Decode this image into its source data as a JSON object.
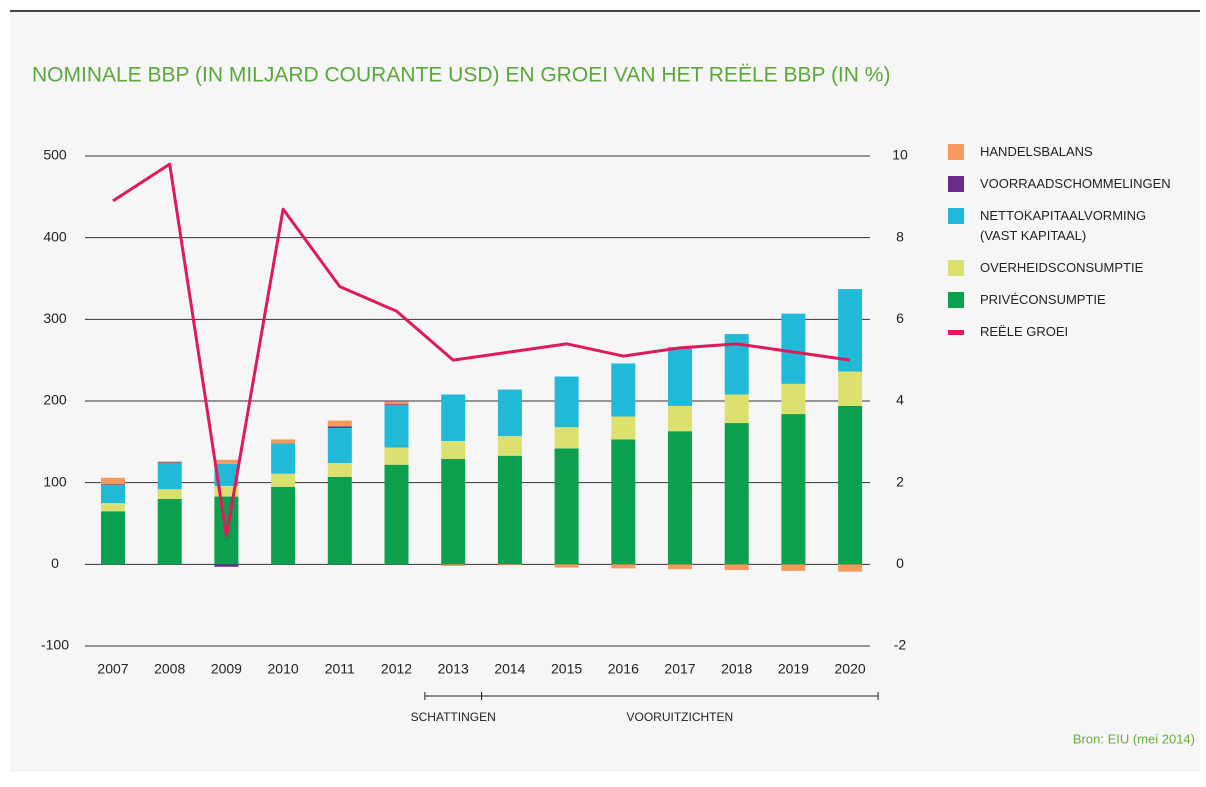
{
  "chart_data": {
    "type": "bar",
    "title": "NOMINALE BBP (IN MILJARD COURANTE USD) EN GROEI VAN HET REËLE BBP (IN %)",
    "categories": [
      "2007",
      "2008",
      "2009",
      "2010",
      "2011",
      "2012",
      "2013",
      "2014",
      "2015",
      "2016",
      "2017",
      "2018",
      "2019",
      "2020"
    ],
    "stacked": true,
    "series": [
      {
        "name": "PRIVÉCONSUMPTIE",
        "color": "#0aa04e",
        "values": [
          65,
          80,
          83,
          95,
          107,
          122,
          129,
          133,
          142,
          153,
          163,
          173,
          184,
          194
        ]
      },
      {
        "name": "OVERHEIDSCONSUMPTIE",
        "color": "#dbe06e",
        "values": [
          10,
          12,
          13,
          16,
          17,
          21,
          22,
          24,
          26,
          28,
          31,
          35,
          37,
          42
        ]
      },
      {
        "name": "NETTOKAPITAALVORMING (VAST KAPITAAL)",
        "color": "#22b9d9",
        "values": [
          22,
          32,
          27,
          37,
          43,
          52,
          57,
          57,
          62,
          65,
          72,
          74,
          86,
          101
        ]
      },
      {
        "name": "VOORRAADSCHOMMELINGEN",
        "color": "#6a2a8a",
        "values": [
          1,
          1,
          -3,
          0,
          2,
          1,
          0,
          0,
          0,
          0,
          0,
          0,
          0,
          0
        ]
      },
      {
        "name": "HANDELSBALANS",
        "color": "#f49a5c",
        "values": [
          8,
          1,
          5,
          5,
          7,
          3,
          -2,
          -1,
          -4,
          -5,
          -6,
          -7,
          -8,
          -9
        ]
      },
      {
        "name": "REËLE GROEI",
        "color": "#e0195b",
        "type": "line",
        "axis": "y2",
        "values": [
          8.9,
          9.8,
          0.7,
          8.7,
          6.8,
          6.2,
          5.0,
          5.2,
          5.4,
          5.1,
          5.3,
          5.4,
          5.2,
          5.0
        ]
      }
    ],
    "legend_order": [
      4,
      3,
      2,
      1,
      0,
      5
    ],
    "ylim": [
      -100,
      500
    ],
    "yticks": [
      -100,
      0,
      100,
      200,
      300,
      400,
      500
    ],
    "y2lim": [
      -2,
      10
    ],
    "y2ticks": [
      -2,
      0,
      2,
      4,
      6,
      8,
      10
    ],
    "grid": true,
    "annotations": [
      "SCHATTINGEN",
      "VOORUITZICHTEN"
    ],
    "source": "Bron: EIU (mei 2014)"
  }
}
